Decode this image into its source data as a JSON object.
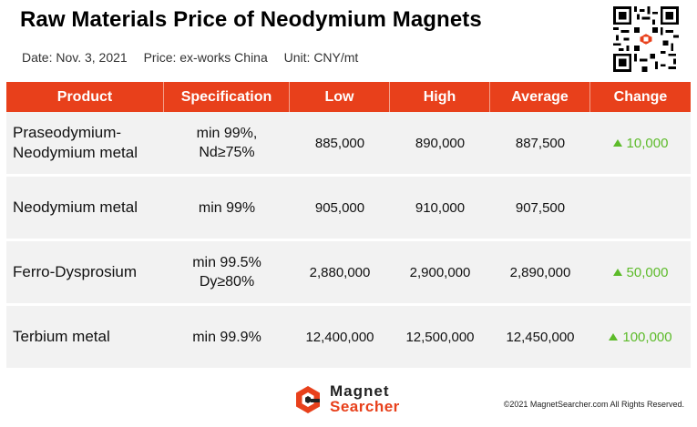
{
  "title": "Raw Materials Price of Neodymium Magnets",
  "subtitle": {
    "date": "Date: Nov. 3, 2021",
    "price": "Price: ex-works China",
    "unit": "Unit: CNY/mt"
  },
  "table": {
    "headers": [
      "Product",
      "Specification",
      "Low",
      "High",
      "Average",
      "Change"
    ],
    "rows": [
      {
        "product": [
          "Praseodymium-",
          "Neodymium metal"
        ],
        "spec": [
          "min 99%,",
          "Nd≥75%"
        ],
        "low": "885,000",
        "high": "890,000",
        "average": "887,500",
        "change": "10,000"
      },
      {
        "product": [
          "Neodymium metal"
        ],
        "spec": [
          "min 99%"
        ],
        "low": "905,000",
        "high": "910,000",
        "average": "907,500",
        "change": ""
      },
      {
        "product": [
          "Ferro-Dysprosium"
        ],
        "spec": [
          "min 99.5%",
          "Dy≥80%"
        ],
        "low": "2,880,000",
        "high": "2,900,000",
        "average": "2,890,000",
        "change": "50,000"
      },
      {
        "product": [
          "Terbium metal"
        ],
        "spec": [
          "min 99.9%"
        ],
        "low": "12,400,000",
        "high": "12,500,000",
        "average": "12,450,000",
        "change": "100,000"
      }
    ]
  },
  "colors": {
    "header_bg": "#e8401b",
    "row_bg": "#f2f2f2",
    "increase": "#5dbb2a"
  },
  "logo": {
    "line1": "Magnet",
    "line2": "Searcher"
  },
  "copyright": "©2021 MagnetSearcher.com All Rights Reserved."
}
